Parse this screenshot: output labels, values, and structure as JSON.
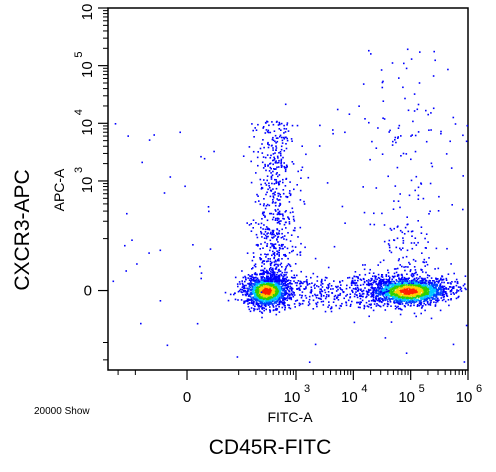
{
  "labels": {
    "outer_ylabel": "CXCR3-APC",
    "outer_xlabel": "CD45R-FITC",
    "event_count": "20000 Show"
  },
  "chart_data": {
    "type": "scatter",
    "title": "",
    "xlabel": "FITC-A",
    "ylabel": "APC-A",
    "x_scale": "biexponential",
    "y_scale": "biexponential",
    "xlim": [
      -300,
      1000000
    ],
    "ylim": [
      -300,
      1000000
    ],
    "x_ticks": [
      {
        "value": 0,
        "label": "0"
      },
      {
        "value": 1000,
        "label": "10",
        "exp": "3"
      },
      {
        "value": 10000,
        "label": "10",
        "exp": "4"
      },
      {
        "value": 100000,
        "label": "10",
        "exp": "5"
      },
      {
        "value": 1000000,
        "label": "10",
        "exp": "6"
      }
    ],
    "y_ticks": [
      {
        "value": 0,
        "label": "0"
      },
      {
        "value": 1000,
        "label": "10",
        "exp": "3"
      },
      {
        "value": 10000,
        "label": "10",
        "exp": "4"
      },
      {
        "value": 100000,
        "label": "10",
        "exp": "5"
      },
      {
        "value": 1000000,
        "label": "10",
        "exp": "6"
      }
    ],
    "grid": false,
    "populations": [
      {
        "x_center": 300,
        "y_center": 0,
        "weight": 0.34,
        "color": "#ff0000"
      },
      {
        "x_center": 600,
        "y_center": 800,
        "weight": 0.1,
        "color": "#0000ff"
      },
      {
        "x_center": 90000,
        "y_center": 0,
        "weight": 0.4,
        "color": "#ff0000"
      },
      {
        "x_center": 5000,
        "y_center": 0,
        "weight": 0.06,
        "color": "#0000ff"
      },
      {
        "x_center": 90000,
        "y_center": 2000,
        "weight": 0.04,
        "color": "#0000ff"
      }
    ],
    "event_count": 20000
  }
}
